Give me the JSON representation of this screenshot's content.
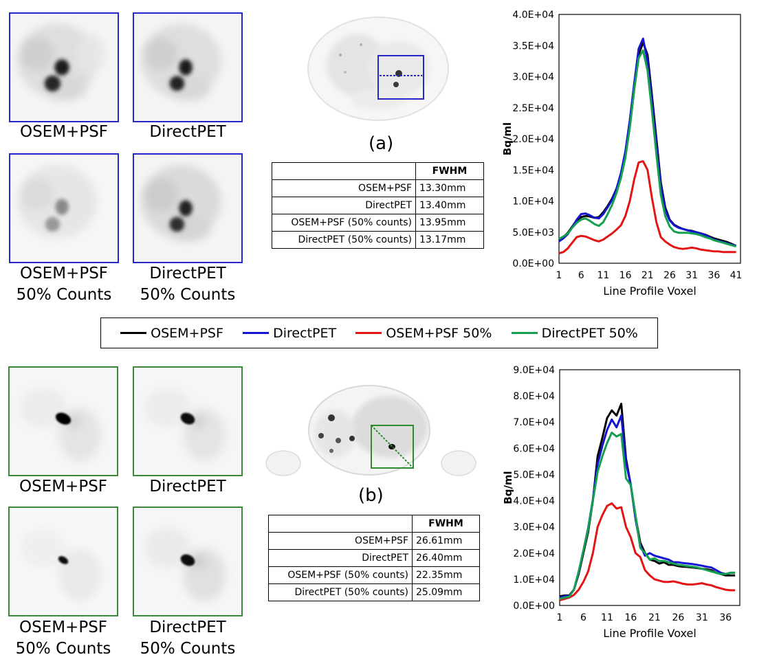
{
  "thumbnails_a": [
    {
      "caption": "OSEM+PSF"
    },
    {
      "caption": "DirectPET"
    },
    {
      "caption": "OSEM+PSF",
      "caption2": "50% Counts"
    },
    {
      "caption": "DirectPET",
      "caption2": "50% Counts"
    }
  ],
  "thumbnails_b": [
    {
      "caption": "OSEM+PSF"
    },
    {
      "caption": "DirectPET"
    },
    {
      "caption": "OSEM+PSF",
      "caption2": "50% Counts"
    },
    {
      "caption": "DirectPET",
      "caption2": "50% Counts"
    }
  ],
  "panel_a_label": "(a)",
  "panel_b_label": "(b)",
  "table_a": {
    "header": "FWHM",
    "rows": [
      {
        "label": "OSEM+PSF",
        "value": "13.30mm"
      },
      {
        "label": "DirectPET",
        "value": "13.40mm"
      },
      {
        "label": "OSEM+PSF (50% counts)",
        "value": "13.95mm"
      },
      {
        "label": "DirectPET (50% counts)",
        "value": "13.17mm"
      }
    ]
  },
  "table_b": {
    "header": "FWHM",
    "rows": [
      {
        "label": "OSEM+PSF",
        "value": "26.61mm"
      },
      {
        "label": "DirectPET",
        "value": "26.40mm"
      },
      {
        "label": "OSEM+PSF (50% counts)",
        "value": "22.35mm"
      },
      {
        "label": "DirectPET (50% counts)",
        "value": "25.09mm"
      }
    ]
  },
  "legend": [
    {
      "label": "OSEM+PSF",
      "color": "#000000"
    },
    {
      "label": "DirectPET",
      "color": "#1414d2"
    },
    {
      "label": "OSEM+PSF 50%",
      "color": "#e41414"
    },
    {
      "label": "DirectPET 50%",
      "color": "#14a050"
    }
  ],
  "chart_data": [
    {
      "type": "line",
      "xlabel": "Line Profile Voxel",
      "ylabel": "Bq/ml",
      "xlim": [
        1,
        42
      ],
      "ylim": [
        0,
        40000
      ],
      "y_ticks": [
        "0.0E+00",
        "5.0E+03",
        "1.0E+04",
        "1.5E+04",
        "2.0E+04",
        "2.5E+04",
        "3.0E+04",
        "3.5E+04",
        "4.0E+04"
      ],
      "x_ticks": [
        "1",
        "6",
        "11",
        "16",
        "21",
        "26",
        "31",
        "36",
        "41"
      ],
      "series": [
        {
          "name": "OSEM+PSF",
          "color": "#000000",
          "values": [
            3700,
            4200,
            4900,
            5900,
            6900,
            7400,
            7600,
            7500,
            7300,
            7400,
            8200,
            9200,
            10400,
            12000,
            14300,
            17500,
            22000,
            28000,
            33500,
            35500,
            33500,
            27000,
            20000,
            13000,
            9000,
            7000,
            6200,
            5800,
            5500,
            5300,
            5200,
            5000,
            4800,
            4600,
            4300,
            4000,
            3800,
            3600,
            3400,
            3100,
            2800
          ]
        },
        {
          "name": "DirectPET",
          "color": "#1414d2",
          "values": [
            3500,
            4000,
            4700,
            5800,
            7000,
            7900,
            8000,
            7700,
            7300,
            7200,
            7900,
            9000,
            10200,
            12000,
            14500,
            18000,
            23000,
            29000,
            34500,
            36100,
            32500,
            26000,
            19000,
            12500,
            8500,
            6900,
            6100,
            5700,
            5500,
            5300,
            5100,
            5000,
            4800,
            4500,
            4200,
            3800,
            3600,
            3400,
            3200,
            3000,
            2800
          ]
        },
        {
          "name": "OSEM+PSF 50%",
          "color": "#e41414",
          "values": [
            1600,
            1800,
            2400,
            3300,
            4200,
            4400,
            4300,
            4000,
            3700,
            3500,
            3800,
            4300,
            4800,
            5400,
            6100,
            7600,
            10000,
            13500,
            16200,
            16400,
            15000,
            10500,
            6600,
            4200,
            3500,
            3000,
            2600,
            2400,
            2300,
            2400,
            2500,
            2400,
            2200,
            2100,
            2000,
            1900,
            1900,
            1800,
            1800,
            1800,
            1800
          ]
        },
        {
          "name": "DirectPET 50%",
          "color": "#14a050",
          "values": [
            3900,
            4300,
            4800,
            5700,
            6500,
            7000,
            7200,
            6800,
            6300,
            6000,
            6600,
            7900,
            9400,
            11300,
            13700,
            17000,
            21800,
            28000,
            33000,
            34200,
            31000,
            24500,
            17500,
            11000,
            7600,
            5900,
            5100,
            4900,
            4900,
            4900,
            4800,
            4700,
            4500,
            4200,
            4000,
            3700,
            3500,
            3300,
            3100,
            2900,
            2700
          ]
        }
      ]
    },
    {
      "type": "line",
      "xlabel": "Line Profile Voxel",
      "ylabel": "Bq/ml",
      "xlim": [
        1,
        39
      ],
      "ylim": [
        0,
        90000
      ],
      "y_ticks": [
        "0.0E+00",
        "1.0E+04",
        "2.0E+04",
        "3.0E+04",
        "4.0E+04",
        "5.0E+04",
        "6.0E+04",
        "7.0E+04",
        "8.0E+04",
        "9.0E+04"
      ],
      "x_ticks": [
        "1",
        "6",
        "11",
        "16",
        "21",
        "26",
        "31",
        "36"
      ],
      "series": [
        {
          "name": "OSEM+PSF",
          "color": "#000000",
          "values": [
            3500,
            3800,
            3800,
            6000,
            12000,
            20000,
            28000,
            40000,
            57000,
            64000,
            71500,
            74500,
            72500,
            77000,
            56000,
            46000,
            34000,
            24000,
            20000,
            17500,
            17000,
            16000,
            16500,
            15500,
            15500,
            15000,
            14800,
            14700,
            14500,
            14300,
            14000,
            13800,
            13500,
            12500,
            12000,
            11500,
            11500,
            11500
          ]
        },
        {
          "name": "DirectPET",
          "color": "#1414d2",
          "values": [
            3000,
            3500,
            3600,
            6000,
            12500,
            21000,
            29500,
            40500,
            54000,
            61000,
            67000,
            71000,
            68000,
            72500,
            54500,
            46000,
            33000,
            23000,
            19000,
            20000,
            19000,
            18500,
            18000,
            17500,
            16500,
            16500,
            16200,
            16000,
            15800,
            15500,
            15200,
            14800,
            14500,
            13500,
            12500,
            12000,
            12500,
            12500
          ]
        },
        {
          "name": "OSEM+PSF 50%",
          "color": "#e41414",
          "values": [
            2000,
            2500,
            3000,
            4000,
            6000,
            9000,
            13000,
            20000,
            30000,
            34500,
            38000,
            39000,
            37000,
            37500,
            30000,
            26000,
            20000,
            18500,
            13500,
            11500,
            10000,
            9500,
            9000,
            9000,
            9200,
            8800,
            8300,
            8000,
            8000,
            8200,
            8500,
            8000,
            7700,
            7000,
            6500,
            6000,
            5800,
            5800
          ]
        },
        {
          "name": "DirectPET 50%",
          "color": "#14a050",
          "values": [
            2500,
            3000,
            3300,
            6000,
            13000,
            21000,
            29000,
            40000,
            51000,
            57000,
            62000,
            66000,
            64500,
            65500,
            48500,
            46000,
            34500,
            22000,
            20000,
            17500,
            18000,
            17000,
            17000,
            16500,
            16000,
            15500,
            15300,
            15000,
            14800,
            14500,
            14000,
            13500,
            13000,
            12500,
            12000,
            12000,
            12500,
            12500
          ]
        }
      ]
    }
  ]
}
